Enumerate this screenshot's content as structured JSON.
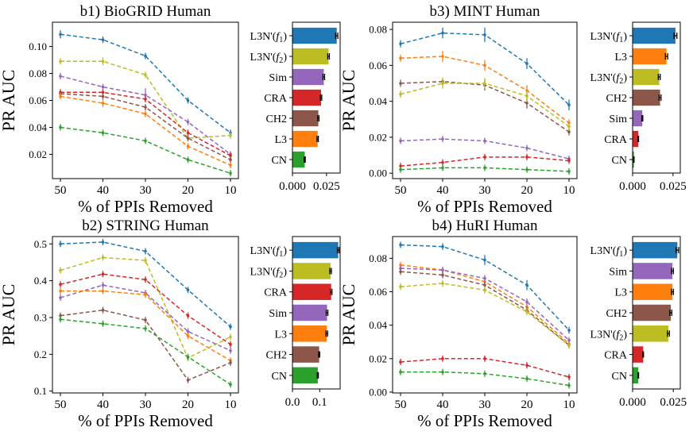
{
  "palette": {
    "L3N'(f1)": "#1f77b4",
    "L3N'(f2)": "#bcbd22",
    "Sim": "#9467bd",
    "CRA": "#d62728",
    "CH2": "#8c564b",
    "L3": "#ff7f0e",
    "CN": "#2ca02c"
  },
  "chart_data": [
    {
      "type": "line",
      "title": "b1) BioGRID Human",
      "xlabel": "% of PPIs Removed",
      "ylabel": "PR AUC",
      "x": [
        50,
        40,
        30,
        20,
        10
      ],
      "x_ticks": [
        "50",
        "40",
        "30",
        "20",
        "10"
      ],
      "ylim": [
        0.002,
        0.118
      ],
      "y_ticks": [
        "0.02",
        "0.04",
        "0.06",
        "0.08",
        "0.10"
      ],
      "y_tick_values": [
        0.02,
        0.04,
        0.06,
        0.08,
        0.1
      ],
      "series": [
        {
          "key": "L3N'(f1)",
          "values": [
            0.109,
            0.105,
            0.093,
            0.06,
            0.036
          ],
          "err": [
            0.003,
            0.002,
            0.001,
            0.001,
            0.001
          ]
        },
        {
          "key": "L3N'(f2)",
          "values": [
            0.089,
            0.089,
            0.079,
            0.032,
            0.034
          ],
          "err": [
            0.002,
            0.003,
            0.001,
            0.002,
            0.002
          ]
        },
        {
          "key": "Sim",
          "values": [
            0.078,
            0.07,
            0.064,
            0.044,
            0.02
          ],
          "err": [
            0.001,
            0.001,
            0.005,
            0.001,
            0.001
          ]
        },
        {
          "key": "CRA",
          "values": [
            0.066,
            0.066,
            0.061,
            0.036,
            0.019
          ],
          "err": [
            0.001,
            0.001,
            0.001,
            0.001,
            0.001
          ]
        },
        {
          "key": "CH2",
          "values": [
            0.065,
            0.063,
            0.055,
            0.032,
            0.016
          ],
          "err": [
            0.001,
            0.001,
            0.001,
            0.001,
            0.001
          ]
        },
        {
          "key": "L3",
          "values": [
            0.063,
            0.058,
            0.05,
            0.026,
            0.012
          ],
          "err": [
            0.001,
            0.003,
            0.001,
            0.001,
            0.001
          ]
        },
        {
          "key": "CN",
          "values": [
            0.04,
            0.036,
            0.03,
            0.016,
            0.006
          ],
          "err": [
            0.002,
            0.001,
            0.001,
            0.001,
            0.001
          ]
        }
      ],
      "bar": {
        "labels": [
          "L3N'(f1)",
          "L3N'(f2)",
          "Sim",
          "CRA",
          "CH2",
          "L3",
          "CN"
        ],
        "values": [
          0.0325,
          0.0265,
          0.023,
          0.021,
          0.019,
          0.0185,
          0.009
        ],
        "err": [
          0.0008,
          0.0006,
          0.0006,
          0.0005,
          0.0005,
          0.0005,
          0.0004
        ],
        "xlim": [
          0,
          0.035
        ],
        "x_ticks": [
          "0.000",
          "0.025"
        ],
        "x_tick_values": [
          0.0,
          0.025
        ]
      }
    },
    {
      "type": "line",
      "title": "b3) MINT Human",
      "xlabel": "% of PPIs Removed",
      "ylabel": "PR AUC",
      "x": [
        50,
        40,
        30,
        20,
        10
      ],
      "x_ticks": [
        "50",
        "40",
        "30",
        "20",
        "10"
      ],
      "ylim": [
        -0.003,
        0.084
      ],
      "y_ticks": [
        "0.00",
        "0.02",
        "0.04",
        "0.06",
        "0.08"
      ],
      "y_tick_values": [
        0.0,
        0.02,
        0.04,
        0.06,
        0.08
      ],
      "series": [
        {
          "key": "L3N'(f1)",
          "values": [
            0.072,
            0.078,
            0.077,
            0.061,
            0.038
          ],
          "err": [
            0.002,
            0.003,
            0.004,
            0.003,
            0.003
          ]
        },
        {
          "key": "L3",
          "values": [
            0.064,
            0.065,
            0.06,
            0.046,
            0.028
          ],
          "err": [
            0.002,
            0.003,
            0.003,
            0.003,
            0.002
          ]
        },
        {
          "key": "CH2",
          "values": [
            0.05,
            0.051,
            0.049,
            0.039,
            0.023
          ],
          "err": [
            0.002,
            0.002,
            0.003,
            0.003,
            0.002
          ]
        },
        {
          "key": "L3N'(f2)",
          "values": [
            0.044,
            0.05,
            0.05,
            0.043,
            0.026
          ],
          "err": [
            0.002,
            0.003,
            0.003,
            0.003,
            0.002
          ]
        },
        {
          "key": "Sim",
          "values": [
            0.018,
            0.019,
            0.018,
            0.014,
            0.008
          ],
          "err": [
            0.001,
            0.001,
            0.001,
            0.001,
            0.001
          ]
        },
        {
          "key": "CRA",
          "values": [
            0.004,
            0.006,
            0.009,
            0.009,
            0.007
          ],
          "err": [
            0.0005,
            0.0005,
            0.0005,
            0.0005,
            0.0005
          ]
        },
        {
          "key": "CN",
          "values": [
            0.002,
            0.003,
            0.003,
            0.002,
            0.001
          ],
          "err": [
            0.0003,
            0.0003,
            0.0003,
            0.0003,
            0.0003
          ]
        }
      ],
      "bar": {
        "labels": [
          "L3N'(f1)",
          "L3",
          "L3N'(f2)",
          "CH2",
          "Sim",
          "CRA",
          "CN"
        ],
        "values": [
          0.0265,
          0.021,
          0.0165,
          0.017,
          0.006,
          0.0035,
          0.0008
        ],
        "err": [
          0.0009,
          0.0007,
          0.0006,
          0.0006,
          0.0003,
          0.0002,
          0.0001
        ],
        "xlim": [
          0,
          0.0295
        ],
        "x_ticks": [
          "0.000",
          "0.025"
        ],
        "x_tick_values": [
          0.0,
          0.025
        ]
      }
    },
    {
      "type": "line",
      "title": "b2) STRING Human",
      "xlabel": "% of PPIs Removed",
      "ylabel": "PR AUC",
      "x": [
        50,
        40,
        30,
        20,
        10
      ],
      "x_ticks": [
        "50",
        "40",
        "30",
        "20",
        "10"
      ],
      "ylim": [
        0.095,
        0.52
      ],
      "y_ticks": [
        "0.1",
        "0.2",
        "0.3",
        "0.4",
        "0.5"
      ],
      "y_tick_values": [
        0.1,
        0.2,
        0.3,
        0.4,
        0.5
      ],
      "series": [
        {
          "key": "L3N'(f1)",
          "values": [
            0.5,
            0.505,
            0.48,
            0.375,
            0.275
          ],
          "err": [
            0.002,
            0.002,
            0.002,
            0.002,
            0.002
          ]
        },
        {
          "key": "L3N'(f2)",
          "values": [
            0.428,
            0.463,
            0.455,
            0.19,
            0.247
          ],
          "err": [
            0.002,
            0.002,
            0.002,
            0.002,
            0.003
          ]
        },
        {
          "key": "CRA",
          "values": [
            0.39,
            0.418,
            0.403,
            0.305,
            0.227
          ],
          "err": [
            0.002,
            0.002,
            0.002,
            0.002,
            0.002
          ]
        },
        {
          "key": "Sim",
          "values": [
            0.354,
            0.388,
            0.367,
            0.262,
            0.21
          ],
          "err": [
            0.002,
            0.002,
            0.002,
            0.002,
            0.002
          ]
        },
        {
          "key": "L3",
          "values": [
            0.372,
            0.372,
            0.362,
            0.25,
            0.183
          ],
          "err": [
            0.002,
            0.002,
            0.002,
            0.002,
            0.002
          ]
        },
        {
          "key": "CH2",
          "values": [
            0.305,
            0.32,
            0.293,
            0.13,
            0.177
          ],
          "err": [
            0.002,
            0.002,
            0.002,
            0.002,
            0.002
          ]
        },
        {
          "key": "CN",
          "values": [
            0.295,
            0.283,
            0.27,
            0.193,
            0.118
          ],
          "err": [
            0.002,
            0.002,
            0.002,
            0.002,
            0.002
          ]
        }
      ],
      "bar": {
        "labels": [
          "L3N'(f1)",
          "L3N'(f2)",
          "CRA",
          "Sim",
          "L3",
          "CH2",
          "CN"
        ],
        "values": [
          0.168,
          0.14,
          0.142,
          0.127,
          0.126,
          0.098,
          0.093
        ],
        "err": [
          0.003,
          0.003,
          0.003,
          0.003,
          0.003,
          0.002,
          0.002
        ],
        "xlim": [
          0,
          0.175
        ],
        "x_ticks": [
          "0.0",
          "0.1"
        ],
        "x_tick_values": [
          0.0,
          0.1
        ]
      }
    },
    {
      "type": "line",
      "title": "b4) HuRI Human",
      "xlabel": "% of PPIs Removed",
      "ylabel": "PR AUC",
      "x": [
        50,
        40,
        30,
        20,
        10
      ],
      "x_ticks": [
        "50",
        "40",
        "30",
        "20",
        "10"
      ],
      "ylim": [
        -0.0005,
        0.093
      ],
      "y_ticks": [
        "0.00",
        "0.02",
        "0.04",
        "0.06",
        "0.08"
      ],
      "y_tick_values": [
        0.0,
        0.02,
        0.04,
        0.06,
        0.08
      ],
      "series": [
        {
          "key": "L3N'(f1)",
          "values": [
            0.088,
            0.087,
            0.079,
            0.064,
            0.037
          ],
          "err": [
            0.001,
            0.002,
            0.003,
            0.003,
            0.002
          ]
        },
        {
          "key": "L3",
          "values": [
            0.076,
            0.073,
            0.066,
            0.051,
            0.029
          ],
          "err": [
            0.001,
            0.001,
            0.002,
            0.002,
            0.001
          ]
        },
        {
          "key": "Sim",
          "values": [
            0.074,
            0.073,
            0.068,
            0.054,
            0.031
          ],
          "err": [
            0.001,
            0.001,
            0.002,
            0.002,
            0.001
          ]
        },
        {
          "key": "CH2",
          "values": [
            0.072,
            0.07,
            0.064,
            0.049,
            0.028
          ],
          "err": [
            0.001,
            0.001,
            0.002,
            0.002,
            0.001
          ]
        },
        {
          "key": "L3N'(f2)",
          "values": [
            0.063,
            0.065,
            0.061,
            0.048,
            0.028
          ],
          "err": [
            0.002,
            0.002,
            0.002,
            0.002,
            0.001
          ]
        },
        {
          "key": "CRA",
          "values": [
            0.018,
            0.02,
            0.02,
            0.016,
            0.009
          ],
          "err": [
            0.0005,
            0.0005,
            0.0005,
            0.0005,
            0.0005
          ]
        },
        {
          "key": "CN",
          "values": [
            0.012,
            0.012,
            0.011,
            0.008,
            0.004
          ],
          "err": [
            0.0004,
            0.0004,
            0.0004,
            0.0004,
            0.0004
          ]
        }
      ],
      "bar": {
        "labels": [
          "L3N'(f1)",
          "Sim",
          "L3",
          "CH2",
          "L3N'(f2)",
          "CRA",
          "CN"
        ],
        "values": [
          0.0275,
          0.0245,
          0.0245,
          0.0235,
          0.022,
          0.0065,
          0.0035
        ],
        "err": [
          0.0008,
          0.0006,
          0.0006,
          0.0006,
          0.0006,
          0.0002,
          0.0002
        ],
        "xlim": [
          0,
          0.0293
        ],
        "x_ticks": [
          "0.000",
          "0.025"
        ],
        "x_tick_values": [
          0.0,
          0.025
        ]
      }
    }
  ]
}
